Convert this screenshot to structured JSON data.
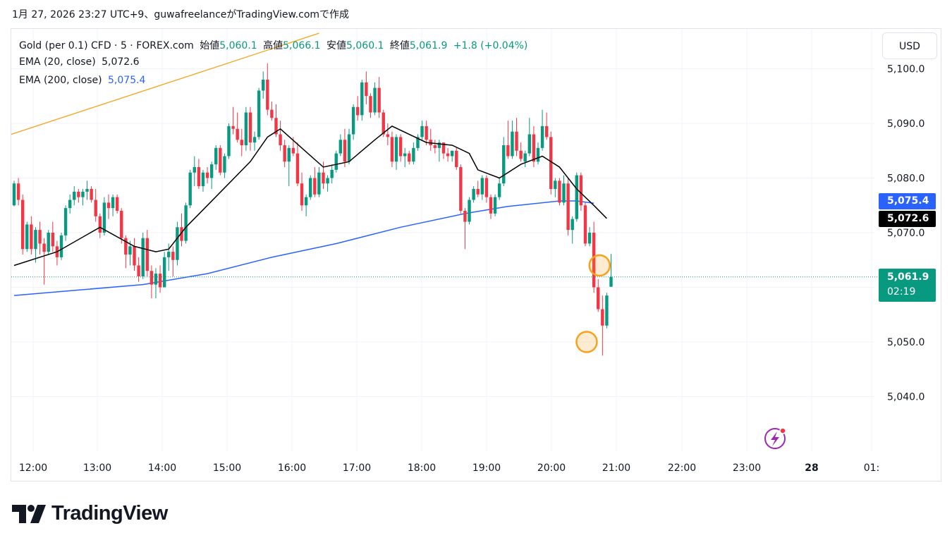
{
  "header": {
    "caption": "1月 27, 2026 23:27 UTC+9、guwafreelanceがTradingView.comで作成"
  },
  "legend": {
    "symbol": "Gold (per 0.1) CFD · 5 · FOREX.com",
    "open_label": "始値",
    "open_value": "5,060.1",
    "high_label": "高値",
    "high_value": "5,066.1",
    "low_label": "安値",
    "low_value": "5,060.1",
    "close_label": "終値",
    "close_value": "5,061.9",
    "change": "+1.8 (+0.04%)",
    "ema20_label": "EMA (20, close)",
    "ema20_value": "5,072.6",
    "ema200_label": "EMA (200, close)",
    "ema200_value": "5,075.4"
  },
  "price_scale": {
    "currency": "USD",
    "ema200_tag": "5,075.4",
    "ema20_tag": "5,072.6",
    "last_price_tag": "5,061.9",
    "countdown": "02:19"
  },
  "brand": {
    "name": "TradingView"
  },
  "colors": {
    "up": "#089981",
    "down": "#f23645",
    "ema20": "#000000",
    "ema200": "#2962ff",
    "trendline": "#f7a21b",
    "marker": "#f7a21b"
  },
  "chart_data": {
    "type": "candlestick",
    "symbol": "Gold (per 0.1) CFD",
    "timeframe": "5",
    "x_ticks": [
      "12:00",
      "13:00",
      "14:00",
      "15:00",
      "16:00",
      "17:00",
      "18:00",
      "19:00",
      "20:00",
      "21:00",
      "22:00",
      "23:00",
      "28",
      "01:"
    ],
    "y_ticks": [
      "5,040.0",
      "5,050.0",
      "5,060.0",
      "5,070.0",
      "5,080.0",
      "5,090.0",
      "5,100.0"
    ],
    "ylim": [
      5033,
      5107
    ],
    "candles": [
      [
        5075.0,
        5079.5,
        5074.8,
        5079.0
      ],
      [
        5079.0,
        5080.0,
        5075.0,
        5076.0
      ],
      [
        5076.0,
        5077.0,
        5066.0,
        5067.0
      ],
      [
        5067.0,
        5072.0,
        5066.5,
        5071.5
      ],
      [
        5071.5,
        5073.0,
        5066.0,
        5067.0
      ],
      [
        5067.0,
        5071.0,
        5064.5,
        5070.5
      ],
      [
        5070.5,
        5072.0,
        5066.0,
        5068.0
      ],
      [
        5068.0,
        5069.0,
        5060.5,
        5066.5
      ],
      [
        5066.5,
        5070.5,
        5066.0,
        5070.0
      ],
      [
        5070.0,
        5072.0,
        5066.5,
        5067.5
      ],
      [
        5067.5,
        5068.5,
        5064.0,
        5065.5
      ],
      [
        5065.5,
        5070.0,
        5065.0,
        5069.5
      ],
      [
        5069.5,
        5075.0,
        5068.5,
        5074.5
      ],
      [
        5074.5,
        5077.0,
        5073.5,
        5076.0
      ],
      [
        5076.0,
        5078.5,
        5075.0,
        5077.5
      ],
      [
        5077.5,
        5078.0,
        5075.5,
        5076.5
      ],
      [
        5076.5,
        5078.0,
        5075.0,
        5077.5
      ],
      [
        5077.5,
        5079.5,
        5076.0,
        5078.0
      ],
      [
        5078.0,
        5078.5,
        5075.5,
        5076.0
      ],
      [
        5076.0,
        5078.0,
        5072.0,
        5073.0
      ],
      [
        5073.0,
        5073.5,
        5069.0,
        5070.0
      ],
      [
        5070.0,
        5076.5,
        5069.5,
        5075.5
      ],
      [
        5075.5,
        5077.0,
        5072.5,
        5074.5
      ],
      [
        5074.5,
        5077.0,
        5073.0,
        5076.5
      ],
      [
        5076.5,
        5077.0,
        5073.5,
        5074.0
      ],
      [
        5074.0,
        5074.5,
        5068.0,
        5069.0
      ],
      [
        5069.0,
        5069.5,
        5063.5,
        5066.0
      ],
      [
        5066.0,
        5068.5,
        5064.0,
        5067.5
      ],
      [
        5067.5,
        5069.0,
        5063.0,
        5064.0
      ],
      [
        5064.0,
        5065.5,
        5061.0,
        5062.0
      ],
      [
        5062.0,
        5070.0,
        5061.5,
        5069.0
      ],
      [
        5069.0,
        5070.5,
        5062.0,
        5063.0
      ],
      [
        5063.0,
        5064.0,
        5058.0,
        5060.5
      ],
      [
        5060.5,
        5063.5,
        5058.0,
        5062.5
      ],
      [
        5062.5,
        5064.0,
        5059.0,
        5060.0
      ],
      [
        5060.0,
        5066.5,
        5060.0,
        5065.5
      ],
      [
        5065.5,
        5068.0,
        5063.0,
        5066.5
      ],
      [
        5066.5,
        5067.5,
        5062.0,
        5065.0
      ],
      [
        5065.0,
        5072.0,
        5064.0,
        5071.0
      ],
      [
        5071.0,
        5073.5,
        5067.5,
        5068.5
      ],
      [
        5068.5,
        5075.5,
        5068.0,
        5075.0
      ],
      [
        5075.0,
        5081.5,
        5074.5,
        5081.0
      ],
      [
        5081.0,
        5084.0,
        5078.5,
        5082.0
      ],
      [
        5082.0,
        5083.5,
        5078.0,
        5078.5
      ],
      [
        5078.5,
        5081.5,
        5077.5,
        5081.0
      ],
      [
        5081.0,
        5082.0,
        5079.0,
        5080.0
      ],
      [
        5080.0,
        5083.0,
        5078.0,
        5082.5
      ],
      [
        5082.5,
        5086.0,
        5081.5,
        5085.5
      ],
      [
        5085.5,
        5086.0,
        5080.5,
        5081.0
      ],
      [
        5081.0,
        5084.5,
        5080.0,
        5084.0
      ],
      [
        5084.0,
        5090.0,
        5083.5,
        5089.5
      ],
      [
        5089.5,
        5093.0,
        5088.0,
        5089.0
      ],
      [
        5089.0,
        5092.0,
        5086.5,
        5087.0
      ],
      [
        5087.0,
        5089.0,
        5084.0,
        5086.0
      ],
      [
        5086.0,
        5093.0,
        5085.0,
        5092.0
      ],
      [
        5092.0,
        5093.0,
        5085.0,
        5086.5
      ],
      [
        5086.5,
        5088.5,
        5085.0,
        5087.5
      ],
      [
        5087.5,
        5096.5,
        5087.0,
        5096.0
      ],
      [
        5096.0,
        5099.5,
        5094.5,
        5098.0
      ],
      [
        5098.0,
        5101.0,
        5091.5,
        5092.5
      ],
      [
        5092.5,
        5094.0,
        5090.5,
        5091.0
      ],
      [
        5091.0,
        5093.5,
        5087.5,
        5088.0
      ],
      [
        5088.0,
        5090.5,
        5085.0,
        5086.0
      ],
      [
        5086.0,
        5087.0,
        5082.0,
        5083.0
      ],
      [
        5083.0,
        5086.0,
        5078.5,
        5085.5
      ],
      [
        5085.5,
        5087.5,
        5084.0,
        5084.5
      ],
      [
        5084.5,
        5086.5,
        5078.5,
        5079.0
      ],
      [
        5079.0,
        5081.0,
        5074.0,
        5075.0
      ],
      [
        5075.0,
        5077.0,
        5073.0,
        5076.5
      ],
      [
        5076.5,
        5080.5,
        5076.0,
        5080.0
      ],
      [
        5080.0,
        5082.0,
        5076.5,
        5077.0
      ],
      [
        5077.0,
        5082.0,
        5076.5,
        5081.0
      ],
      [
        5081.0,
        5083.0,
        5078.0,
        5079.0
      ],
      [
        5079.0,
        5080.5,
        5077.5,
        5080.0
      ],
      [
        5080.0,
        5082.5,
        5079.0,
        5081.5
      ],
      [
        5081.5,
        5085.0,
        5081.0,
        5084.5
      ],
      [
        5084.5,
        5088.0,
        5084.0,
        5087.0
      ],
      [
        5087.0,
        5089.0,
        5082.0,
        5083.0
      ],
      [
        5083.0,
        5089.0,
        5082.5,
        5088.0
      ],
      [
        5088.0,
        5093.5,
        5087.0,
        5093.0
      ],
      [
        5093.0,
        5095.0,
        5090.5,
        5091.5
      ],
      [
        5091.5,
        5098.0,
        5090.5,
        5097.5
      ],
      [
        5097.5,
        5099.5,
        5093.5,
        5095.0
      ],
      [
        5095.0,
        5095.5,
        5091.0,
        5092.0
      ],
      [
        5092.0,
        5097.5,
        5091.5,
        5096.5
      ],
      [
        5096.5,
        5098.5,
        5091.0,
        5092.0
      ],
      [
        5092.0,
        5092.5,
        5087.5,
        5088.0
      ],
      [
        5088.0,
        5090.0,
        5086.0,
        5087.5
      ],
      [
        5087.5,
        5088.5,
        5082.0,
        5083.0
      ],
      [
        5083.0,
        5088.0,
        5081.5,
        5087.5
      ],
      [
        5087.5,
        5088.0,
        5083.0,
        5084.0
      ],
      [
        5084.0,
        5085.5,
        5082.0,
        5084.5
      ],
      [
        5084.5,
        5085.0,
        5082.5,
        5083.0
      ],
      [
        5083.0,
        5086.5,
        5082.5,
        5085.5
      ],
      [
        5085.5,
        5088.0,
        5085.0,
        5087.5
      ],
      [
        5087.5,
        5090.5,
        5087.0,
        5089.5
      ],
      [
        5089.5,
        5090.5,
        5086.0,
        5087.0
      ],
      [
        5087.0,
        5089.0,
        5085.0,
        5086.0
      ],
      [
        5086.0,
        5087.0,
        5084.5,
        5085.5
      ],
      [
        5085.5,
        5087.0,
        5083.0,
        5086.5
      ],
      [
        5086.5,
        5086.5,
        5083.5,
        5084.5
      ],
      [
        5084.5,
        5085.5,
        5083.0,
        5084.0
      ],
      [
        5084.0,
        5085.0,
        5083.0,
        5085.0
      ],
      [
        5085.0,
        5085.5,
        5081.5,
        5082.0
      ],
      [
        5082.0,
        5082.5,
        5073.5,
        5074.0
      ],
      [
        5074.0,
        5074.5,
        5067.0,
        5072.0
      ],
      [
        5072.0,
        5076.5,
        5071.5,
        5076.0
      ],
      [
        5076.0,
        5078.5,
        5075.5,
        5078.0
      ],
      [
        5078.0,
        5079.5,
        5076.5,
        5077.0
      ],
      [
        5077.0,
        5080.5,
        5076.0,
        5080.0
      ],
      [
        5080.0,
        5080.5,
        5075.5,
        5076.5
      ],
      [
        5076.5,
        5077.0,
        5072.5,
        5073.5
      ],
      [
        5073.5,
        5077.0,
        5073.0,
        5076.5
      ],
      [
        5076.5,
        5080.0,
        5076.0,
        5079.0
      ],
      [
        5079.0,
        5087.5,
        5078.5,
        5086.0
      ],
      [
        5086.0,
        5090.5,
        5083.5,
        5084.0
      ],
      [
        5084.0,
        5090.5,
        5083.5,
        5088.5
      ],
      [
        5088.5,
        5091.0,
        5084.0,
        5085.0
      ],
      [
        5085.0,
        5086.5,
        5083.0,
        5083.5
      ],
      [
        5083.0,
        5085.0,
        5082.0,
        5084.5
      ],
      [
        5084.5,
        5091.0,
        5084.0,
        5088.0
      ],
      [
        5088.0,
        5089.5,
        5082.0,
        5083.0
      ],
      [
        5083.0,
        5086.5,
        5082.5,
        5085.5
      ],
      [
        5085.5,
        5092.5,
        5085.0,
        5089.5
      ],
      [
        5089.5,
        5092.0,
        5087.0,
        5087.5
      ],
      [
        5087.5,
        5088.5,
        5077.0,
        5078.0
      ],
      [
        5078.0,
        5080.0,
        5076.5,
        5079.5
      ],
      [
        5079.5,
        5080.0,
        5075.0,
        5075.5
      ],
      [
        5075.5,
        5080.5,
        5075.0,
        5079.0
      ],
      [
        5079.0,
        5080.0,
        5069.5,
        5070.5
      ],
      [
        5070.5,
        5073.0,
        5068.0,
        5072.5
      ],
      [
        5072.5,
        5081.0,
        5072.0,
        5080.5
      ],
      [
        5080.5,
        5081.0,
        5074.0,
        5075.0
      ],
      [
        5075.0,
        5075.5,
        5067.5,
        5068.0
      ],
      [
        5068.0,
        5071.0,
        5067.5,
        5070.0
      ],
      [
        5070.0,
        5072.0,
        5059.0,
        5060.0
      ],
      [
        5060.0,
        5061.5,
        5055.5,
        5056.0
      ],
      [
        5056.0,
        5058.5,
        5047.5,
        5053.0
      ],
      [
        5053.0,
        5059.0,
        5052.5,
        5058.5
      ],
      [
        5060.1,
        5066.1,
        5060.1,
        5061.9
      ]
    ],
    "ema20": [
      [
        0,
        5064.0
      ],
      [
        10,
        5066.5
      ],
      [
        20,
        5071.0
      ],
      [
        28,
        5067.5
      ],
      [
        33,
        5066.5
      ],
      [
        36,
        5067.0
      ],
      [
        40,
        5071.0
      ],
      [
        45,
        5075.0
      ],
      [
        50,
        5079.0
      ],
      [
        55,
        5083.0
      ],
      [
        59,
        5087.5
      ],
      [
        62,
        5089.0
      ],
      [
        67,
        5085.5
      ],
      [
        72,
        5082.0
      ],
      [
        78,
        5083.0
      ],
      [
        84,
        5087.0
      ],
      [
        88,
        5089.5
      ],
      [
        96,
        5086.5
      ],
      [
        102,
        5086.0
      ],
      [
        106,
        5084.5
      ],
      [
        108,
        5081.5
      ],
      [
        113,
        5080.0
      ],
      [
        118,
        5082.5
      ],
      [
        123,
        5084.0
      ],
      [
        127,
        5082.0
      ],
      [
        131,
        5078.0
      ],
      [
        135,
        5075.0
      ],
      [
        138,
        5072.6
      ]
    ],
    "ema200": [
      [
        0,
        5058.5
      ],
      [
        15,
        5059.5
      ],
      [
        30,
        5060.5
      ],
      [
        45,
        5062.5
      ],
      [
        60,
        5065.5
      ],
      [
        75,
        5068.0
      ],
      [
        90,
        5071.0
      ],
      [
        105,
        5073.5
      ],
      [
        115,
        5074.8
      ],
      [
        127,
        5075.8
      ],
      [
        131,
        5075.8
      ],
      [
        135,
        5075.4
      ]
    ],
    "trendline": {
      "from": [
        0,
        5088.0
      ],
      "to": [
        71,
        5106.5
      ]
    },
    "markers": [
      {
        "candle": 133,
        "price": 5050.0
      },
      {
        "candle": 136,
        "price": 5064.0
      }
    ],
    "last_price": 5061.9
  }
}
